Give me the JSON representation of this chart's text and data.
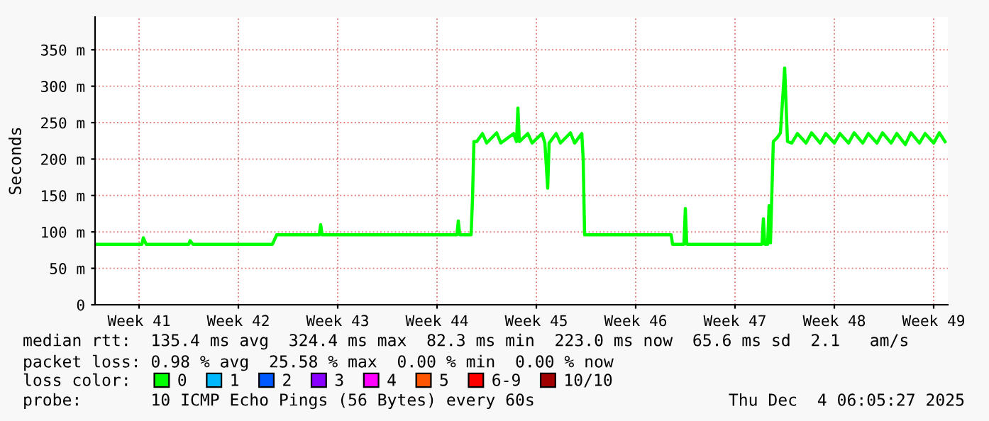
{
  "chart_data": {
    "type": "line",
    "ylabel": "Seconds",
    "xlim": [
      "2025-10-06T09:36",
      "2025-12-05T12:00"
    ],
    "ylim": [
      0,
      395
    ],
    "xticks": [
      {
        "value": "2025-10-09T12:00",
        "label": "Week 41"
      },
      {
        "value": "2025-10-16T12:00",
        "label": "Week 42"
      },
      {
        "value": "2025-10-23T12:00",
        "label": "Week 43"
      },
      {
        "value": "2025-10-30T12:00",
        "label": "Week 44"
      },
      {
        "value": "2025-11-06T12:00",
        "label": "Week 45"
      },
      {
        "value": "2025-11-13T12:00",
        "label": "Week 46"
      },
      {
        "value": "2025-11-20T12:00",
        "label": "Week 47"
      },
      {
        "value": "2025-11-27T12:00",
        "label": "Week 48"
      },
      {
        "value": "2025-12-04T12:00",
        "label": "Week 49"
      }
    ],
    "yticks": [
      0,
      {
        "value": 50,
        "label": "50 m"
      },
      {
        "value": 100,
        "label": "100 m"
      },
      {
        "value": 150,
        "label": "150 m"
      },
      {
        "value": 200,
        "label": "200 m"
      },
      {
        "value": 250,
        "label": "250 m"
      },
      {
        "value": 300,
        "label": "300 m"
      },
      {
        "value": 350,
        "label": "350 m"
      }
    ],
    "grid": true,
    "legend": "bottom",
    "line_style": "solid",
    "marker": "none",
    "x": [
      "2025-10-06T09:36",
      "2025-10-09T16:48",
      "2025-10-09T19:12",
      "2025-10-10T00:00",
      "2025-10-13T00:00",
      "2025-10-13T02:24",
      "2025-10-13T07:12",
      "2025-10-18T21:36",
      "2025-10-19T04:48",
      "2025-10-22T04:48",
      "2025-10-22T07:12",
      "2025-10-22T09:36",
      "2025-10-31T21:36",
      "2025-11-01T00:00",
      "2025-11-01T02:24",
      "2025-11-01T21:36",
      "2025-11-02T00:00",
      "2025-11-02T02:24",
      "2025-11-02T07:12",
      "2025-11-02T16:48",
      "2025-11-03T00:00",
      "2025-11-03T16:48",
      "2025-11-04T00:00",
      "2025-11-04T21:36",
      "2025-11-05T02:24",
      "2025-11-05T04:48",
      "2025-11-05T07:12",
      "2025-11-05T21:36",
      "2025-11-06T04:48",
      "2025-11-06T21:36",
      "2025-11-07T02:24",
      "2025-11-07T07:12",
      "2025-11-07T09:36",
      "2025-11-07T21:36",
      "2025-11-08T04:48",
      "2025-11-08T21:36",
      "2025-11-09T04:48",
      "2025-11-09T16:48",
      "2025-11-09T19:12",
      "2025-11-09T21:36",
      "2025-11-16T00:00",
      "2025-11-16T02:24",
      "2025-11-16T21:36",
      "2025-11-17T00:00",
      "2025-11-17T02:24",
      "2025-11-22T09:36",
      "2025-11-22T12:00",
      "2025-11-22T14:24",
      "2025-11-22T19:12",
      "2025-11-22T21:36",
      "2025-11-23T00:00",
      "2025-11-23T04:48",
      "2025-11-23T12:00",
      "2025-11-23T16:48",
      "2025-11-24T00:00",
      "2025-11-24T04:48",
      "2025-11-24T12:00",
      "2025-11-24T21:36",
      "2025-11-25T12:00",
      "2025-11-25T21:36",
      "2025-11-26T12:00",
      "2025-11-26T21:36",
      "2025-11-27T12:00",
      "2025-11-27T21:36",
      "2025-11-28T12:00",
      "2025-11-28T21:36",
      "2025-11-29T12:00",
      "2025-11-29T21:36",
      "2025-11-30T12:00",
      "2025-11-30T21:36",
      "2025-12-01T12:00",
      "2025-12-01T21:36",
      "2025-12-02T12:00",
      "2025-12-02T21:36",
      "2025-12-03T12:00",
      "2025-12-03T21:36",
      "2025-12-04T12:00",
      "2025-12-04T21:36",
      "2025-12-05T07:12"
    ],
    "series": [
      {
        "name": "0",
        "color": "#00ff00",
        "values": [
          83,
          83,
          92,
          83,
          83,
          88,
          83,
          83,
          96,
          96,
          110,
          96,
          96,
          115,
          96,
          96,
          145,
          224,
          224,
          235,
          222,
          236,
          222,
          235,
          224,
          270,
          224,
          235,
          222,
          235,
          222,
          160,
          222,
          235,
          222,
          236,
          222,
          235,
          200,
          96,
          96,
          83,
          83,
          132,
          83,
          83,
          118,
          83,
          83,
          136,
          85,
          224,
          230,
          236,
          325,
          224,
          222,
          235,
          222,
          236,
          222,
          235,
          222,
          235,
          222,
          236,
          222,
          235,
          222,
          236,
          222,
          235,
          220,
          236,
          222,
          235,
          222,
          236,
          224
        ]
      },
      {
        "name": "1",
        "color": "#00b8ff",
        "values": [
          null,
          null,
          null,
          null,
          null,
          null,
          null,
          null,
          null,
          null,
          null,
          null,
          null,
          null,
          null,
          null,
          null,
          null,
          null,
          null,
          null,
          null,
          null,
          null,
          null,
          null,
          null,
          null,
          null,
          null,
          null,
          null,
          null,
          null,
          null,
          null,
          null,
          null,
          null,
          null,
          null,
          null,
          null,
          null,
          null,
          null,
          null,
          null,
          null,
          null,
          null,
          null,
          null,
          null,
          null,
          null,
          null,
          null,
          null,
          null,
          null,
          null,
          null,
          null,
          null,
          null,
          null,
          null,
          null,
          null,
          null,
          null,
          null,
          null,
          null,
          null,
          null,
          null,
          null
        ]
      },
      {
        "name": "2",
        "color": "#0059ff",
        "values": [
          null,
          null,
          null,
          null,
          null,
          null,
          null,
          null,
          null,
          null,
          null,
          null,
          null,
          null,
          null,
          null,
          null,
          null,
          null,
          null,
          null,
          null,
          null,
          null,
          null,
          null,
          null,
          null,
          null,
          null,
          null,
          null,
          null,
          null,
          null,
          null,
          null,
          null,
          null,
          null,
          null,
          null,
          null,
          null,
          null,
          null,
          null,
          null,
          null,
          null,
          null,
          null,
          null,
          null,
          null,
          null,
          null,
          null,
          null,
          null,
          null,
          null,
          null,
          null,
          null,
          null,
          null,
          null,
          null,
          null,
          null,
          null,
          null,
          null,
          null,
          null,
          null,
          null,
          null
        ]
      },
      {
        "name": "3",
        "color": "#8a00ff",
        "values": [
          null,
          null,
          null,
          null,
          null,
          null,
          null,
          null,
          null,
          null,
          null,
          null,
          null,
          null,
          null,
          null,
          null,
          null,
          null,
          null,
          null,
          null,
          null,
          null,
          null,
          null,
          null,
          null,
          null,
          null,
          null,
          null,
          null,
          null,
          null,
          null,
          null,
          null,
          null,
          null,
          null,
          null,
          null,
          null,
          null,
          null,
          null,
          null,
          null,
          null,
          null,
          null,
          null,
          null,
          null,
          null,
          null,
          null,
          null,
          null,
          null,
          null,
          null,
          null,
          null,
          null,
          null,
          null,
          null,
          null,
          null,
          null,
          null,
          null,
          null,
          null,
          null,
          null,
          null
        ]
      },
      {
        "name": "4",
        "color": "#ff00ff",
        "values": [
          null,
          null,
          null,
          null,
          null,
          null,
          null,
          null,
          null,
          null,
          null,
          null,
          null,
          null,
          null,
          null,
          null,
          null,
          null,
          null,
          null,
          null,
          null,
          null,
          null,
          null,
          null,
          null,
          null,
          null,
          null,
          null,
          null,
          null,
          null,
          null,
          null,
          null,
          null,
          null,
          null,
          null,
          null,
          null,
          null,
          null,
          null,
          null,
          null,
          null,
          null,
          null,
          null,
          null,
          null,
          null,
          null,
          null,
          null,
          null,
          null,
          null,
          null,
          null,
          null,
          null,
          null,
          null,
          null,
          null,
          null,
          null,
          null,
          null,
          null,
          null,
          null,
          null,
          null
        ]
      },
      {
        "name": "5",
        "color": "#ff5500",
        "values": [
          null,
          null,
          null,
          null,
          null,
          null,
          null,
          null,
          null,
          null,
          null,
          null,
          null,
          null,
          null,
          null,
          null,
          null,
          null,
          null,
          null,
          null,
          null,
          null,
          null,
          null,
          null,
          null,
          null,
          null,
          null,
          null,
          null,
          null,
          null,
          null,
          null,
          null,
          null,
          null,
          null,
          null,
          null,
          null,
          null,
          null,
          null,
          null,
          null,
          null,
          null,
          null,
          null,
          null,
          null,
          null,
          null,
          null,
          null,
          null,
          null,
          null,
          null,
          null,
          null,
          null,
          null,
          null,
          null,
          null,
          null,
          null,
          null,
          null,
          null,
          null,
          null,
          null,
          null
        ]
      },
      {
        "name": "6-9",
        "color": "#ff0000",
        "values": [
          null,
          null,
          null,
          null,
          null,
          null,
          null,
          null,
          null,
          null,
          null,
          null,
          null,
          null,
          null,
          null,
          null,
          null,
          null,
          null,
          null,
          null,
          null,
          null,
          null,
          null,
          null,
          null,
          null,
          null,
          null,
          null,
          null,
          null,
          null,
          null,
          null,
          null,
          null,
          null,
          null,
          null,
          null,
          null,
          null,
          null,
          null,
          null,
          null,
          null,
          null,
          null,
          null,
          null,
          null,
          null,
          null,
          null,
          null,
          null,
          null,
          null,
          null,
          null,
          null,
          null,
          null,
          null,
          null,
          null,
          null,
          null,
          null,
          null,
          null,
          null,
          null,
          null,
          null
        ]
      },
      {
        "name": "10/10",
        "color": "#a10000",
        "values": [
          null,
          null,
          null,
          null,
          null,
          null,
          null,
          null,
          null,
          null,
          null,
          null,
          null,
          null,
          null,
          null,
          null,
          null,
          null,
          null,
          null,
          null,
          null,
          null,
          null,
          null,
          null,
          null,
          null,
          null,
          null,
          null,
          null,
          null,
          null,
          null,
          null,
          null,
          null,
          null,
          null,
          null,
          null,
          null,
          null,
          null,
          null,
          null,
          null,
          null,
          null,
          null,
          null,
          null,
          null,
          null,
          null,
          null,
          null,
          null,
          null,
          null,
          null,
          null,
          null,
          null,
          null,
          null,
          null,
          null,
          null,
          null,
          null,
          null,
          null,
          null,
          null,
          null,
          null
        ]
      }
    ],
    "annotations": [
      "median rtt:  135.4 ms avg  324.4 ms max  82.3 ms min  223.0 ms now  65.6 ms sd  2.1   am/s",
      "packet loss: 0.98 % avg  25.58 % max  0.00 % min  0.00 % now",
      "loss color:",
      "probe:       10 ICMP Echo Pings (56 Bytes) every 60s",
      "Thu Dec  4 06:05:27 2025"
    ]
  }
}
